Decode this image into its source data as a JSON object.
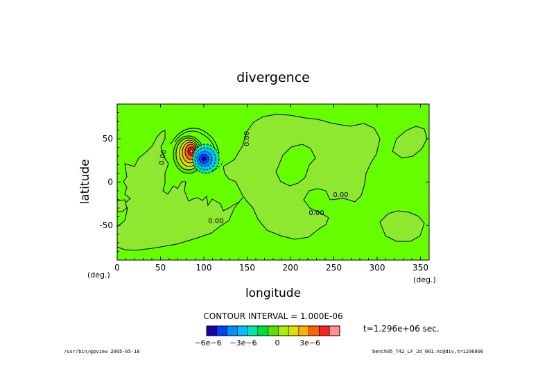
{
  "chart_data": {
    "type": "heatmap",
    "title": "divergence",
    "xlabel": "longitude",
    "ylabel": "latitude",
    "x_unit": "(deg.)",
    "y_unit": "(deg.)",
    "xlim": [
      0,
      360
    ],
    "ylim": [
      -90,
      90
    ],
    "x_ticks": [
      0,
      50,
      100,
      150,
      200,
      250,
      300,
      350
    ],
    "y_ticks": [
      50,
      0,
      -50
    ],
    "contour_labels": [
      {
        "text": "0.00",
        "lon": 55,
        "lat": 28
      },
      {
        "text": "0.00",
        "lon": 152,
        "lat": 50
      },
      {
        "text": "0.00",
        "lon": 258,
        "lat": -17
      },
      {
        "text": "0.00",
        "lon": 230,
        "lat": -38
      },
      {
        "text": "0.00",
        "lon": 114,
        "lat": -47
      }
    ],
    "features": [
      {
        "kind": "positive_max",
        "lon": 82,
        "lat": 36,
        "level": "7e-6"
      },
      {
        "kind": "negative_min",
        "lon": 100,
        "lat": 28,
        "level": "-6e-6"
      }
    ],
    "contour_interval": "CONTOUR INTERVAL = 1.000E-06",
    "time_label": "t=1.296e+06 sec.",
    "colorbar": {
      "colors": [
        "#1a00a8",
        "#0040ff",
        "#0090ff",
        "#00c0ff",
        "#00e8b0",
        "#00e040",
        "#5ce000",
        "#a8f000",
        "#e0e000",
        "#ffb000",
        "#ff6000",
        "#ff2020",
        "#ff9090"
      ],
      "tick_labels": [
        "−6e−6",
        "−3e−6",
        "0",
        "3e−6"
      ]
    }
  },
  "footer": {
    "left": "/usr/bin/gpview  2005-05-18",
    "right": "bench05_T42_LF_2d_001.nc@div,t=1296000"
  },
  "colors": {
    "background_field": "#66ff00",
    "zero_region": "#8ee830",
    "frame": "#000000"
  }
}
